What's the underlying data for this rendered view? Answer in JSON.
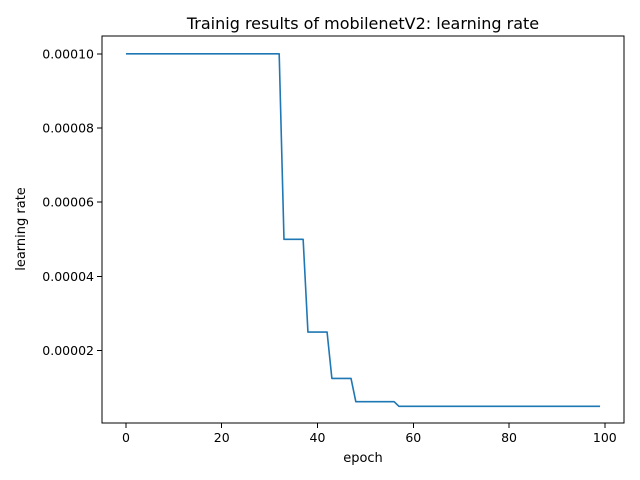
{
  "chart_data": {
    "type": "line",
    "title": "Trainig results of mobilenetV2: learning rate",
    "xlabel": "epoch",
    "ylabel": "learning rate",
    "xlim": [
      -5,
      104
    ],
    "ylim": [
      5e-07,
      0.0001048
    ],
    "xticks": [
      0,
      20,
      40,
      60,
      80,
      100
    ],
    "xtick_labels": [
      "0",
      "20",
      "40",
      "60",
      "80",
      "100"
    ],
    "yticks": [
      2e-05,
      4e-05,
      6e-05,
      8e-05,
      0.0001
    ],
    "ytick_labels": [
      "0.00002",
      "0.00004",
      "0.00006",
      "0.00008",
      "0.00010"
    ],
    "grid": false,
    "series": [
      {
        "color": "#1f77b4",
        "x": [
          0,
          32,
          33,
          37,
          38,
          42,
          43,
          47,
          48,
          56,
          57,
          99
        ],
        "y": [
          0.0001,
          0.0001,
          5e-05,
          5e-05,
          2.5e-05,
          2.5e-05,
          1.25e-05,
          1.25e-05,
          6.25e-06,
          6.25e-06,
          5e-06,
          5e-06
        ]
      }
    ]
  }
}
